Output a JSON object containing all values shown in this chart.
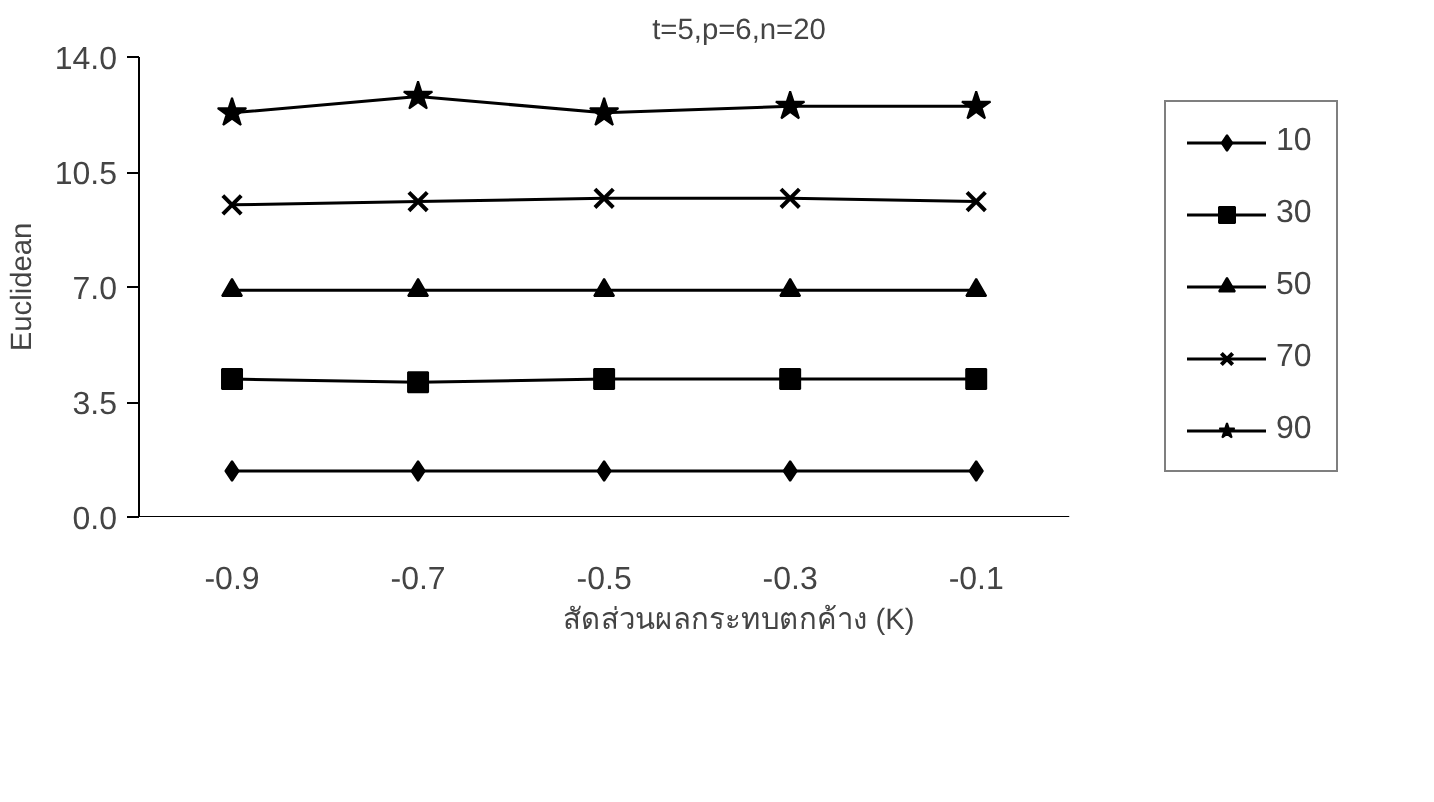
{
  "chart_data": {
    "type": "line",
    "title": "t=5,p=6,n=20",
    "xlabel": "สัดส่วนผลกระทบตกค้าง (K)",
    "ylabel": "Euclidean",
    "categories": [
      "-0.9",
      "-0.7",
      "-0.5",
      "-0.3",
      "-0.1"
    ],
    "ylim": [
      0,
      14
    ],
    "yticks": [
      {
        "value": 0,
        "label": "0.0"
      },
      {
        "value": 3.5,
        "label": "3.5"
      },
      {
        "value": 7,
        "label": "7.0"
      },
      {
        "value": 10.5,
        "label": "10.5"
      },
      {
        "value": 14,
        "label": "14.0"
      }
    ],
    "grid": false,
    "legend": "right",
    "line_style": "solid",
    "series": [
      {
        "name": "10",
        "color": "#000000",
        "marker": "diamond",
        "values": [
          1.4,
          1.4,
          1.4,
          1.4,
          1.4
        ]
      },
      {
        "name": "30",
        "color": "#000000",
        "marker": "square",
        "values": [
          4.2,
          4.1,
          4.2,
          4.2,
          4.2
        ]
      },
      {
        "name": "50",
        "color": "#000000",
        "marker": "triangle",
        "values": [
          6.9,
          6.9,
          6.9,
          6.9,
          6.9
        ]
      },
      {
        "name": "70",
        "color": "#000000",
        "marker": "cross",
        "values": [
          9.5,
          9.6,
          9.7,
          9.7,
          9.6
        ]
      },
      {
        "name": "90",
        "color": "#000000",
        "marker": "star",
        "values": [
          12.3,
          12.8,
          12.3,
          12.5,
          12.5
        ]
      }
    ]
  }
}
